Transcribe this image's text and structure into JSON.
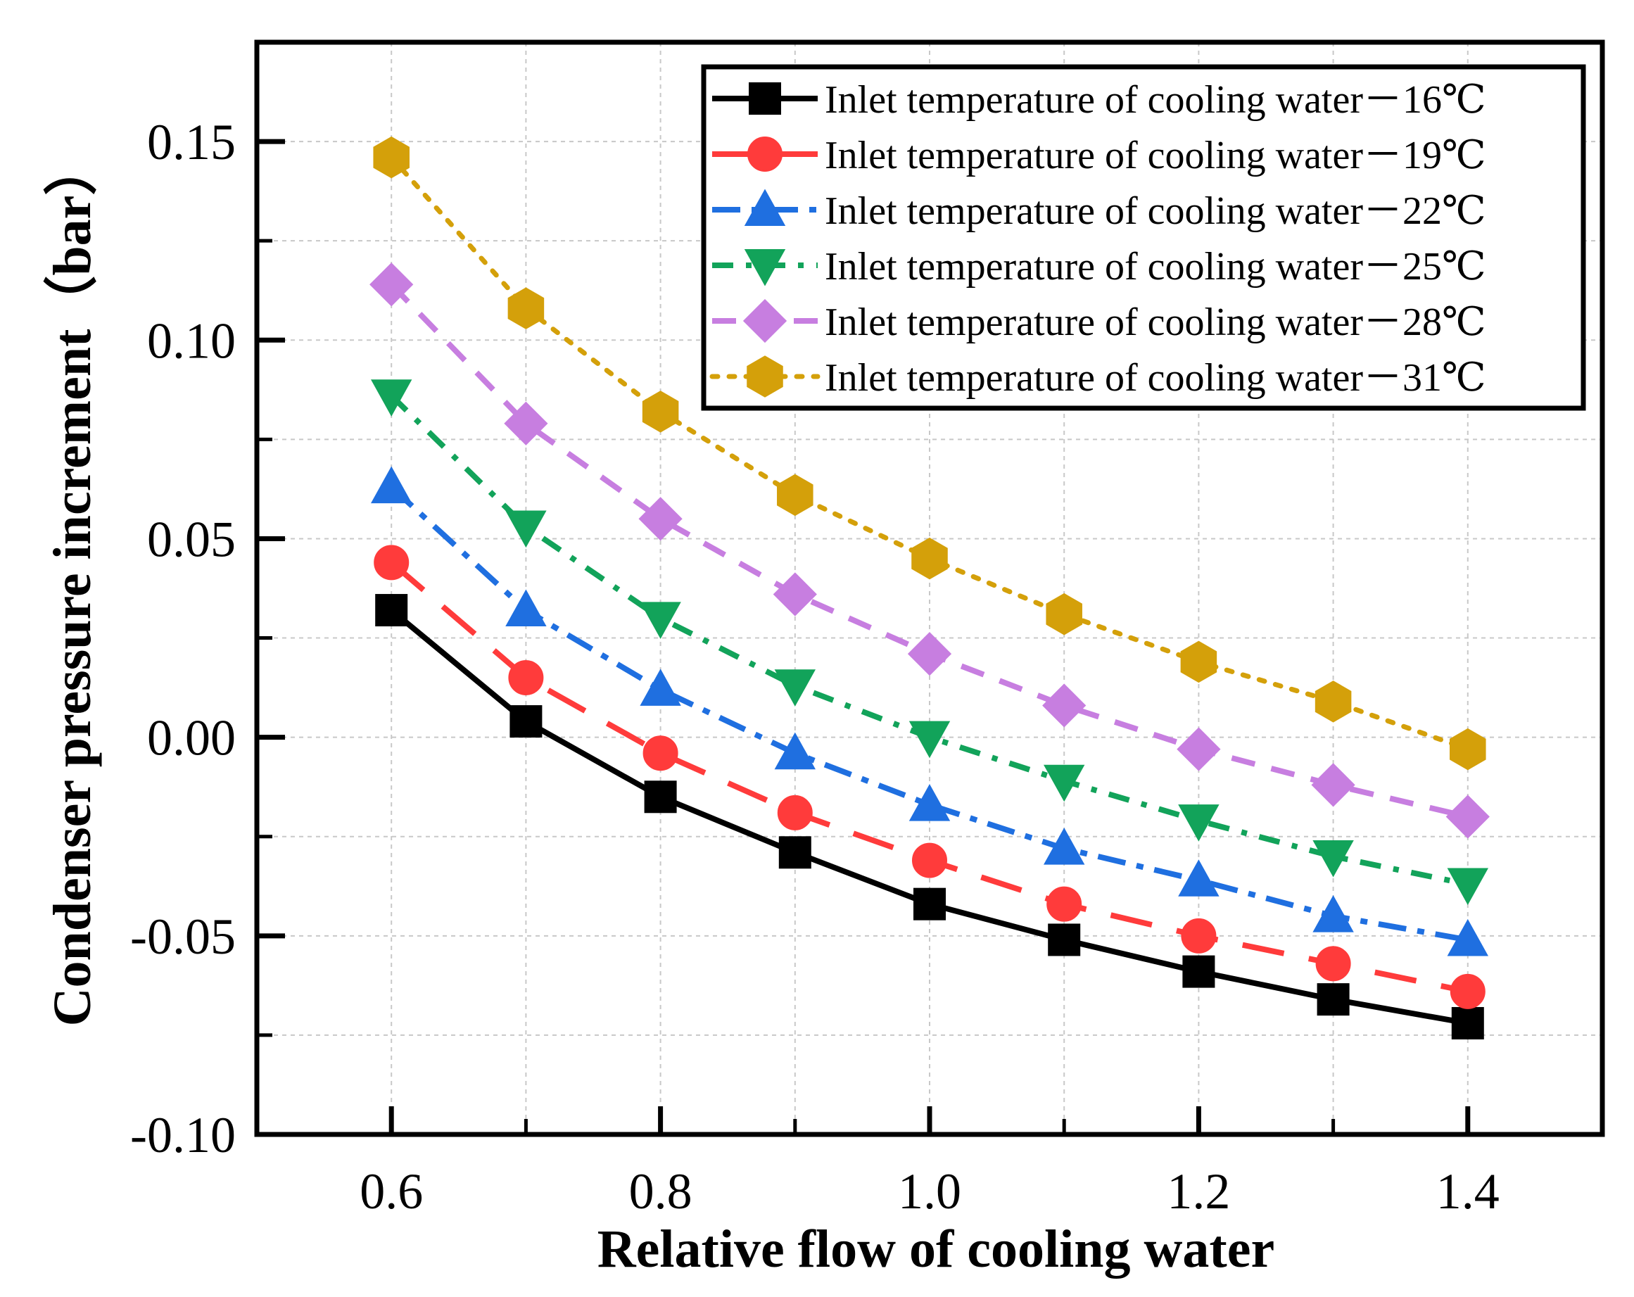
{
  "chart_data": {
    "type": "line",
    "title": "",
    "xlabel": "Relative flow of cooling water",
    "ylabel": "Condenser pressure increment（bar）",
    "xlim": [
      0.5,
      1.5
    ],
    "ylim": [
      -0.1,
      0.175
    ],
    "x_ticks": [
      0.6,
      0.8,
      1.0,
      1.2,
      1.4
    ],
    "x_tick_labels": [
      "0.6",
      "0.8",
      "1.0",
      "1.2",
      "1.4"
    ],
    "x_minor_ticks": [
      0.7,
      0.9,
      1.1,
      1.3
    ],
    "y_ticks": [
      -0.1,
      -0.05,
      0.0,
      0.05,
      0.1,
      0.15
    ],
    "y_tick_labels": [
      "-0.10",
      "-0.05",
      "0.00",
      "0.05",
      "0.10",
      "0.15"
    ],
    "y_minor_ticks": [
      -0.075,
      -0.025,
      0.025,
      0.075,
      0.125
    ],
    "grid": true,
    "legend_position": "top-right",
    "x": [
      0.6,
      0.7,
      0.8,
      0.9,
      1.0,
      1.1,
      1.2,
      1.3,
      1.4
    ],
    "series": [
      {
        "name": "Inlet temperature of cooling water－16℃",
        "color": "#000000",
        "marker": "square",
        "dash": "solid",
        "values": [
          0.032,
          0.004,
          -0.015,
          -0.029,
          -0.042,
          -0.051,
          -0.059,
          -0.066,
          -0.072
        ]
      },
      {
        "name": "Inlet temperature of cooling water－19℃",
        "color": "#ff3b3b",
        "marker": "circle",
        "dash": "dash",
        "values": [
          0.044,
          0.015,
          -0.004,
          -0.019,
          -0.031,
          -0.042,
          -0.05,
          -0.057,
          -0.064
        ]
      },
      {
        "name": "Inlet temperature of cooling water－22℃",
        "color": "#1f6fe0",
        "marker": "triangle-up",
        "dash": "dashdot",
        "values": [
          0.063,
          0.032,
          0.012,
          -0.004,
          -0.017,
          -0.028,
          -0.036,
          -0.045,
          -0.051
        ]
      },
      {
        "name": "Inlet temperature of cooling water－25℃",
        "color": "#12a35a",
        "marker": "triangle-down",
        "dash": "shortdashdot",
        "values": [
          0.086,
          0.053,
          0.03,
          0.013,
          0.0,
          -0.011,
          -0.021,
          -0.03,
          -0.037
        ]
      },
      {
        "name": "Inlet temperature of cooling water－28℃",
        "color": "#c77ee0",
        "marker": "diamond",
        "dash": "shortdash",
        "values": [
          0.114,
          0.079,
          0.055,
          0.036,
          0.021,
          0.008,
          -0.003,
          -0.012,
          -0.02
        ]
      },
      {
        "name": "Inlet temperature of cooling water－31℃",
        "color": "#d4a00a",
        "marker": "hexagon",
        "dash": "dot",
        "values": [
          0.146,
          0.108,
          0.082,
          0.061,
          0.045,
          0.031,
          0.019,
          0.009,
          -0.003
        ]
      }
    ]
  }
}
